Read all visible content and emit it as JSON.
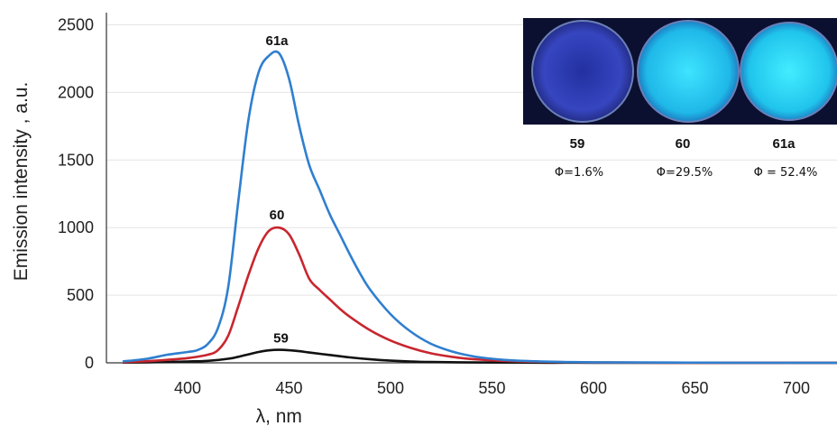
{
  "chart_data": {
    "type": "line",
    "xlabel": "λ, nm",
    "ylabel": "Emission intensity , a.u.",
    "xlim": [
      360,
      720
    ],
    "ylim": [
      0,
      2550
    ],
    "xticks": [
      400,
      450,
      500,
      550,
      600,
      650,
      700
    ],
    "yticks": [
      0,
      500,
      1000,
      1500,
      2000,
      2500
    ],
    "grid": "horizontal",
    "colors": {
      "59": "#111111",
      "60": "#c8262e",
      "61a": "#2f7fcf"
    },
    "series": [
      {
        "name": "59",
        "x": [
          368,
          380,
          390,
          400,
          410,
          420,
          425,
          430,
          435,
          440,
          445,
          450,
          455,
          460,
          470,
          480,
          490,
          500,
          510,
          520,
          540,
          560,
          580,
          600,
          640,
          700,
          720
        ],
        "y": [
          2,
          4,
          7,
          10,
          15,
          30,
          45,
          63,
          80,
          92,
          96,
          93,
          86,
          76,
          58,
          40,
          26,
          16,
          10,
          6,
          3,
          2,
          1,
          1,
          0,
          0,
          0
        ]
      },
      {
        "name": "60",
        "x": [
          368,
          380,
          390,
          400,
          410,
          415,
          420,
          425,
          430,
          435,
          440,
          445,
          450,
          455,
          460,
          465,
          470,
          475,
          480,
          490,
          500,
          510,
          520,
          530,
          540,
          560,
          580,
          600,
          640,
          700,
          720
        ],
        "y": [
          5,
          12,
          22,
          35,
          60,
          95,
          200,
          420,
          650,
          850,
          975,
          1000,
          950,
          800,
          620,
          540,
          470,
          400,
          340,
          240,
          165,
          110,
          70,
          45,
          28,
          12,
          6,
          3,
          1,
          0,
          0
        ]
      },
      {
        "name": "61a",
        "x": [
          368,
          380,
          390,
          400,
          405,
          410,
          415,
          420,
          425,
          430,
          435,
          440,
          445,
          450,
          455,
          460,
          465,
          470,
          475,
          480,
          485,
          490,
          500,
          510,
          520,
          530,
          540,
          550,
          560,
          580,
          600,
          640,
          700,
          720
        ],
        "y": [
          10,
          30,
          60,
          80,
          95,
          140,
          260,
          560,
          1200,
          1800,
          2150,
          2270,
          2290,
          2100,
          1750,
          1460,
          1280,
          1100,
          950,
          800,
          660,
          540,
          360,
          230,
          140,
          85,
          50,
          30,
          18,
          8,
          4,
          2,
          0,
          0
        ]
      }
    ],
    "annotations": [
      {
        "text": "61a",
        "x": 444,
        "y": 2350
      },
      {
        "text": "60",
        "x": 444,
        "y": 1060
      },
      {
        "text": "59",
        "x": 446,
        "y": 150
      }
    ],
    "inset": {
      "position": "top-right",
      "samples": [
        {
          "label": "59",
          "qy": "Φ=1.6%",
          "color": "#2a3aa8"
        },
        {
          "label": "60",
          "qy": "Φ=29.5%",
          "color": "#22c6ea"
        },
        {
          "label": "61a",
          "qy": "Φ = 52.4%",
          "color": "#1fd2ee"
        }
      ]
    }
  }
}
